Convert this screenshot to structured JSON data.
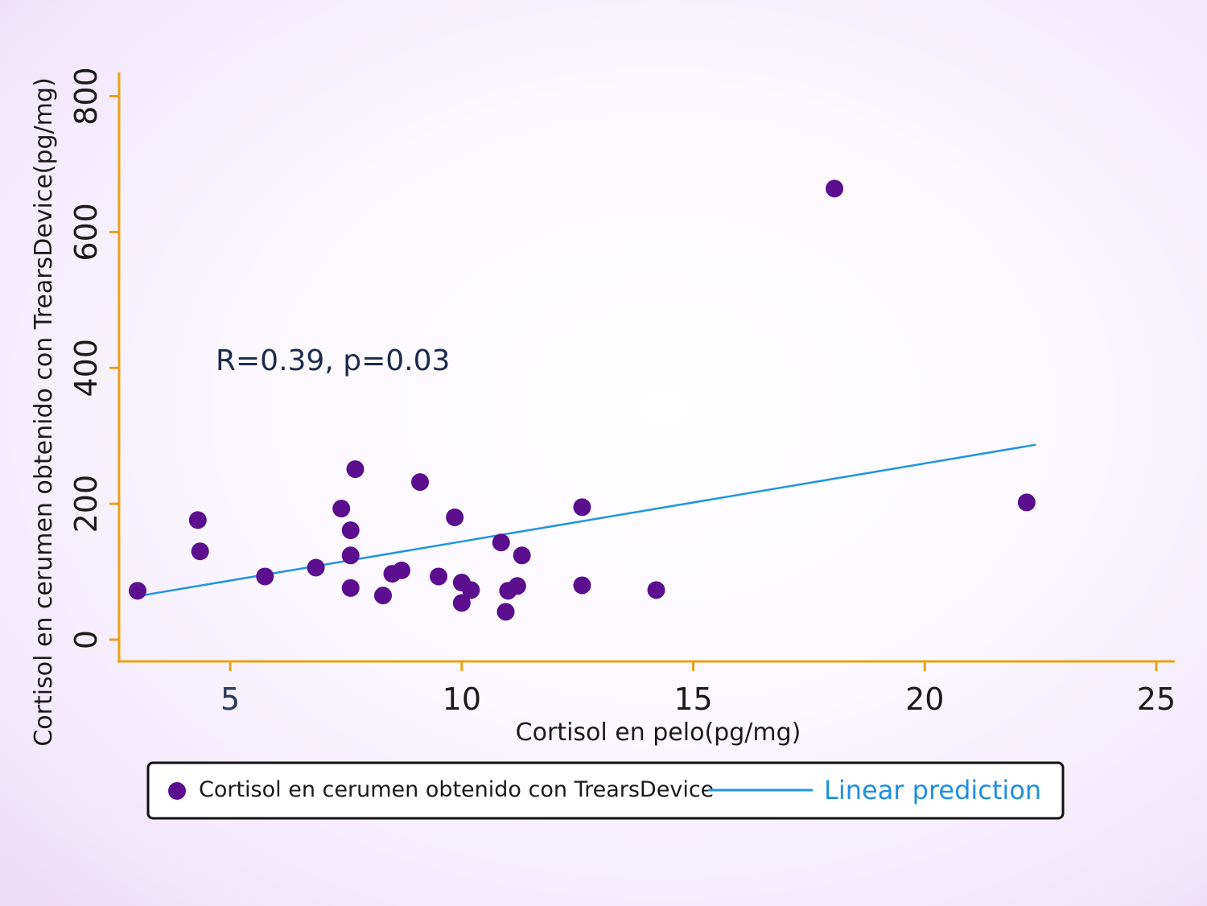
{
  "chart_data": {
    "type": "scatter",
    "title": "",
    "xlabel": "Cortisol en pelo(pg/mg)",
    "ylabel": "Cortisol en cerumen obtenido con TrearsDevice(pg/mg)",
    "xlim": [
      2.6,
      25.4
    ],
    "ylim": [
      -32,
      835
    ],
    "x_ticks": [
      5,
      10,
      15,
      20,
      25
    ],
    "x_tick_labels": [
      "5",
      "10",
      "15",
      "20",
      "25"
    ],
    "y_ticks": [
      0,
      200,
      400,
      600,
      800
    ],
    "y_tick_labels": [
      "0",
      "200",
      "400",
      "600",
      "800"
    ],
    "annotation": "R=0.39, p=0.03",
    "colors": {
      "axis": "#e8a317",
      "points": "#5b0f8f",
      "line": "#1f95e0"
    },
    "series": [
      {
        "name": "Cortisol en cerumen obtenido con TrearsDevice",
        "kind": "scatter",
        "points": [
          {
            "x": 3.0,
            "y": 72
          },
          {
            "x": 4.3,
            "y": 176
          },
          {
            "x": 4.35,
            "y": 130
          },
          {
            "x": 5.75,
            "y": 93
          },
          {
            "x": 6.85,
            "y": 106
          },
          {
            "x": 7.4,
            "y": 193
          },
          {
            "x": 7.6,
            "y": 161
          },
          {
            "x": 7.6,
            "y": 124
          },
          {
            "x": 7.6,
            "y": 76
          },
          {
            "x": 7.7,
            "y": 251
          },
          {
            "x": 8.3,
            "y": 65
          },
          {
            "x": 8.5,
            "y": 97
          },
          {
            "x": 8.7,
            "y": 102
          },
          {
            "x": 9.1,
            "y": 232
          },
          {
            "x": 9.5,
            "y": 93
          },
          {
            "x": 9.85,
            "y": 180
          },
          {
            "x": 10.0,
            "y": 84
          },
          {
            "x": 10.0,
            "y": 54
          },
          {
            "x": 10.2,
            "y": 73
          },
          {
            "x": 10.85,
            "y": 143
          },
          {
            "x": 10.95,
            "y": 41
          },
          {
            "x": 11.0,
            "y": 72
          },
          {
            "x": 11.2,
            "y": 79
          },
          {
            "x": 11.3,
            "y": 124
          },
          {
            "x": 12.6,
            "y": 195
          },
          {
            "x": 12.6,
            "y": 80
          },
          {
            "x": 14.2,
            "y": 73
          },
          {
            "x": 18.05,
            "y": 664
          },
          {
            "x": 22.2,
            "y": 202
          }
        ]
      },
      {
        "name": "Linear prediction",
        "kind": "line",
        "points": [
          {
            "x": 3.0,
            "y": 64
          },
          {
            "x": 22.4,
            "y": 287
          }
        ]
      }
    ]
  }
}
